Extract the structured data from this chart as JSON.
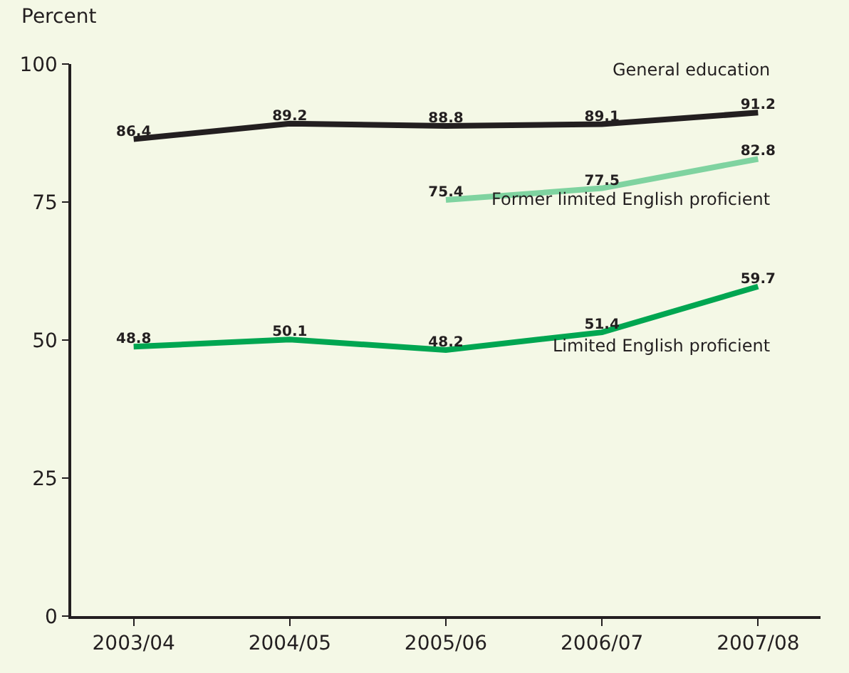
{
  "chart_data": {
    "type": "line",
    "ylabel": "Percent",
    "categories": [
      "2003/04",
      "2004/05",
      "2005/06",
      "2006/07",
      "2007/08"
    ],
    "series": [
      {
        "name": "General education",
        "color": "#231f20",
        "values": [
          86.4,
          89.2,
          88.8,
          89.1,
          91.2
        ]
      },
      {
        "name": "Former limited English proficient",
        "color": "#7fd3a0",
        "values": [
          null,
          null,
          75.4,
          77.5,
          82.8
        ]
      },
      {
        "name": "Limited English proficient",
        "color": "#00a651",
        "values": [
          48.8,
          50.1,
          48.2,
          51.4,
          59.7
        ]
      }
    ],
    "ylim": [
      0,
      100
    ],
    "yticks": [
      0,
      25,
      50,
      75,
      100
    ],
    "grid": false,
    "legend": false,
    "data_labels": true,
    "marker": "none",
    "line_style": "solid"
  }
}
